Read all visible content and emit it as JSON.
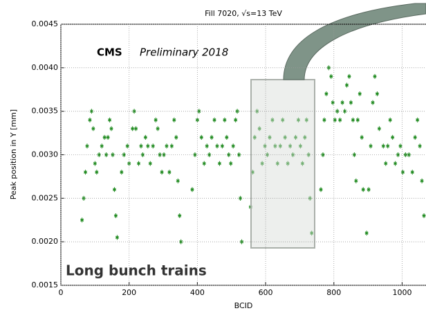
{
  "chart_data": {
    "type": "scatter",
    "title": "Fill  7020, √s=13 TeV",
    "annotations": [
      "CMS",
      "Preliminary 2018",
      "Long bunch trains"
    ],
    "xlabel": "BCID",
    "ylabel": "Peak position in Y [mm]",
    "xlim": [
      0,
      1070
    ],
    "ylim": [
      0.0015,
      0.0045
    ],
    "xticks": [
      0,
      200,
      400,
      600,
      800,
      1000
    ],
    "yticks": [
      0.0015,
      {
        "value": 0.002,
        "label": "0.0020"
      },
      0.0025,
      {
        "value": 0.003,
        "label": "0.0030"
      },
      0.0035,
      {
        "value": 0.004,
        "label": "0.0040"
      },
      0.0045
    ],
    "grid": true,
    "series": [
      {
        "color": "#1f8a1f",
        "x": [
          62,
          67,
          72,
          77,
          85,
          90,
          95,
          100,
          105,
          112,
          120,
          128,
          133,
          138,
          143,
          148,
          152,
          157,
          161,
          165,
          178,
          185,
          195,
          200,
          210,
          215,
          220,
          228,
          235,
          240,
          248,
          255,
          262,
          270,
          278,
          284,
          290,
          296,
          302,
          310,
          318,
          325,
          332,
          338,
          343,
          348,
          352,
          385,
          393,
          400,
          405,
          412,
          420,
          428,
          435,
          442,
          450,
          458,
          465,
          473,
          480,
          486,
          492,
          498,
          505,
          512,
          517,
          522,
          526,
          530,
          556,
          562,
          568,
          575,
          582,
          590,
          598,
          605,
          612,
          620,
          628,
          635,
          643,
          650,
          657,
          665,
          672,
          680,
          688,
          696,
          702,
          708,
          715,
          720,
          726,
          730,
          735,
          762,
          768,
          772,
          778,
          785,
          792,
          797,
          803,
          810,
          818,
          825,
          832,
          838,
          845,
          850,
          856,
          860,
          865,
          870,
          876,
          882,
          886,
          896,
          902,
          908,
          914,
          920,
          927,
          933,
          945,
          952,
          958,
          965,
          972,
          980,
          988,
          995,
          1002,
          1010,
          1020,
          1030,
          1038,
          1045,
          1052,
          1058,
          1064
        ],
        "values": [
          0.00225,
          0.0025,
          0.0028,
          0.0031,
          0.0034,
          0.0035,
          0.0033,
          0.0029,
          0.0028,
          0.003,
          0.0031,
          0.0032,
          0.003,
          0.0032,
          0.0034,
          0.0033,
          0.003,
          0.0026,
          0.0023,
          0.00205,
          0.0028,
          0.003,
          0.0031,
          0.0029,
          0.0033,
          0.0035,
          0.0033,
          0.0029,
          0.0031,
          0.003,
          0.0032,
          0.0031,
          0.0029,
          0.0031,
          0.0034,
          0.0033,
          0.003,
          0.0028,
          0.003,
          0.0031,
          0.0028,
          0.0031,
          0.0034,
          0.0032,
          0.0027,
          0.0023,
          0.002,
          0.0026,
          0.003,
          0.0034,
          0.0035,
          0.0032,
          0.0029,
          0.0031,
          0.003,
          0.0032,
          0.0034,
          0.0031,
          0.0029,
          0.0031,
          0.0034,
          0.0032,
          0.003,
          0.0029,
          0.0031,
          0.0034,
          0.0035,
          0.003,
          0.0025,
          0.002,
          0.0024,
          0.0028,
          0.0032,
          0.0035,
          0.0033,
          0.0029,
          0.0031,
          0.003,
          0.0032,
          0.0034,
          0.0031,
          0.0029,
          0.0031,
          0.0034,
          0.0032,
          0.0029,
          0.0031,
          0.003,
          0.0032,
          0.0034,
          0.0031,
          0.0029,
          0.0032,
          0.0034,
          0.003,
          0.0025,
          0.0021,
          0.0026,
          0.003,
          0.0034,
          0.0037,
          0.004,
          0.0039,
          0.0036,
          0.0034,
          0.0035,
          0.0034,
          0.0036,
          0.0035,
          0.0038,
          0.0039,
          0.0036,
          0.0034,
          0.003,
          0.0027,
          0.0034,
          0.0037,
          0.0032,
          0.0026,
          0.0021,
          0.0026,
          0.0031,
          0.0036,
          0.0039,
          0.0037,
          0.0033,
          0.0031,
          0.0029,
          0.0031,
          0.0034,
          0.0032,
          0.0029,
          0.003,
          0.0031,
          0.0028,
          0.003,
          0.003,
          0.0028,
          0.0032,
          0.0034,
          0.0031,
          0.0027,
          0.0023
        ]
      }
    ]
  }
}
